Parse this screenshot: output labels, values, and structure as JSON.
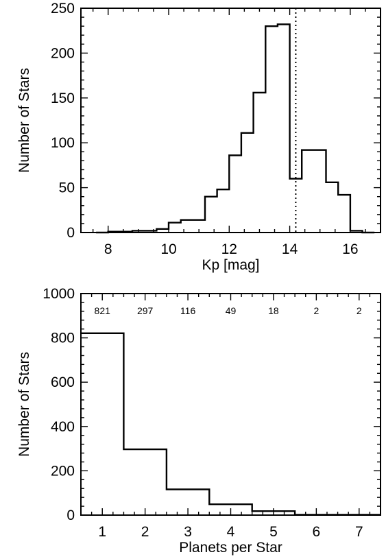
{
  "chart_data": [
    {
      "type": "bar",
      "subtype": "step-histogram",
      "xlabel": "Kp [mag]",
      "ylabel": "Number of Stars",
      "xlim": [
        7.1,
        17.0
      ],
      "ylim": [
        0,
        250
      ],
      "xticks": [
        8,
        10,
        12,
        14,
        16
      ],
      "yticks": [
        0,
        50,
        100,
        150,
        200,
        250
      ],
      "bin_width": 0.4,
      "bin_edges": [
        7.6,
        8.0,
        8.4,
        8.8,
        9.2,
        9.6,
        10.0,
        10.4,
        10.8,
        11.2,
        11.6,
        12.0,
        12.4,
        12.8,
        13.2,
        13.6,
        14.0,
        14.4,
        14.8,
        15.2,
        15.6,
        16.0,
        16.4,
        16.8
      ],
      "values": [
        0,
        1,
        1,
        2,
        2,
        4,
        11,
        14,
        14,
        40,
        48,
        86,
        111,
        156,
        230,
        232,
        60,
        92,
        92,
        56,
        42,
        2,
        0
      ],
      "reference_line": {
        "x": 14.2,
        "style": "dotted"
      },
      "grid": false,
      "legend": "none"
    },
    {
      "type": "bar",
      "subtype": "step-histogram",
      "xlabel": "Planets per Star",
      "ylabel": "Number of Stars",
      "xlim": [
        0.5,
        7.5
      ],
      "ylim": [
        0,
        1000
      ],
      "xticks": [
        1,
        2,
        3,
        4,
        5,
        6,
        7
      ],
      "yticks": [
        0,
        200,
        400,
        600,
        800,
        1000
      ],
      "categories": [
        1,
        2,
        3,
        4,
        5,
        6,
        7
      ],
      "values": [
        821,
        297,
        116,
        49,
        18,
        2,
        2
      ],
      "data_labels": [
        "821",
        "297",
        "116",
        "49",
        "18",
        "2",
        "2"
      ],
      "grid": false,
      "legend": "none"
    }
  ]
}
